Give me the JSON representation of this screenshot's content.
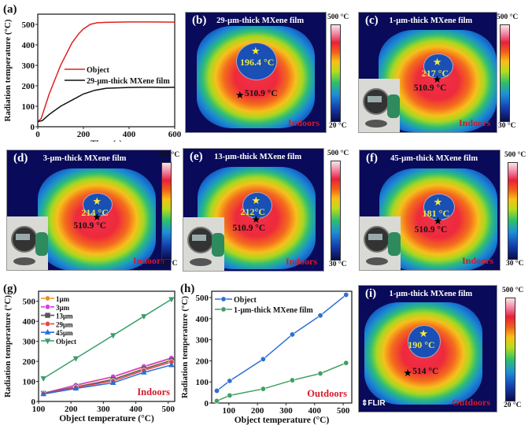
{
  "panels": {
    "a": {
      "label": "(a)"
    },
    "b": {
      "label": "(b)",
      "title": "29-μm-thick MXene film",
      "film_temp": "196.4 °C",
      "object_temp": "510.9 °C",
      "env": "Indoors",
      "cbar_max": "500 °C",
      "cbar_min": "20 °C"
    },
    "c": {
      "label": "(c)",
      "title": "1-μm-thick MXene film",
      "film_temp": "217 °C",
      "object_temp": "510.9 °C",
      "env": "Indoors",
      "cbar_max": "500 °C",
      "cbar_min": "30 °C"
    },
    "d": {
      "label": "(d)",
      "title": "3-μm-thick MXene film",
      "film_temp": "214 °C",
      "object_temp": "510.9 °C",
      "env": "Indoors",
      "cbar_max": "500 °C",
      "cbar_min": "30 °C"
    },
    "e": {
      "label": "(e)",
      "title": "13-μm-thick MXene film",
      "film_temp": "212°C",
      "object_temp": "510.9 °C",
      "env": "Indoors",
      "cbar_max": "500 °C",
      "cbar_min": "30 °C"
    },
    "f": {
      "label": "(f)",
      "title": "45-μm-thick MXene film",
      "film_temp": "181 °C",
      "object_temp": "510.9 °C",
      "env": "Indoors",
      "cbar_max": "500 °C",
      "cbar_min": "30 °C"
    },
    "g": {
      "label": "(g)"
    },
    "h": {
      "label": "(h)"
    },
    "i": {
      "label": "(i)",
      "title": "1-μm-thick MXene film",
      "film_temp": "190 °C",
      "object_temp": "514 °C",
      "env": "Outdoors",
      "cbar_max": "500 °C",
      "cbar_min": "20 °C",
      "camera_brand": "FLIR"
    }
  },
  "chart_data": [
    {
      "id": "a",
      "type": "line",
      "xlabel": "Time (s)",
      "ylabel": "Radiation temperature (°C)",
      "xlim": [
        0,
        600
      ],
      "ylim": [
        0,
        550
      ],
      "xticks": [
        0,
        200,
        400,
        600
      ],
      "yticks": [
        0,
        100,
        200,
        300,
        400,
        500
      ],
      "legend": "center-right",
      "series": [
        {
          "name": "Object",
          "color": "#e02020",
          "x": [
            0,
            15,
            50,
            100,
            150,
            180,
            200,
            230,
            260,
            300,
            400,
            500,
            600
          ],
          "y": [
            25,
            40,
            160,
            300,
            410,
            455,
            478,
            500,
            508,
            510,
            512,
            512,
            511
          ]
        },
        {
          "name": "29-μm-thick MXene film",
          "color": "#111111",
          "x": [
            0,
            20,
            50,
            100,
            150,
            200,
            250,
            300,
            350,
            400,
            450,
            500,
            550,
            600
          ],
          "y": [
            25,
            30,
            60,
            100,
            130,
            160,
            178,
            188,
            190,
            192,
            193,
            193,
            192,
            193
          ]
        }
      ]
    },
    {
      "id": "g",
      "type": "line",
      "xlabel": "Object temperature (°C)",
      "ylabel": "Radiation temperature (°C)",
      "xlim": [
        100,
        520
      ],
      "ylim": [
        0,
        550
      ],
      "xticks": [
        100,
        200,
        300,
        400,
        500
      ],
      "yticks": [
        0,
        100,
        200,
        300,
        400,
        500
      ],
      "legend": "top-left",
      "annotation": "Indoors",
      "x": [
        115,
        215,
        330,
        425,
        510
      ],
      "series": [
        {
          "name": "1μm",
          "color": "#f08c1c",
          "marker": "circle",
          "values": [
            42,
            80,
            122,
            172,
            215
          ]
        },
        {
          "name": "3μm",
          "color": "#d63fe0",
          "marker": "circle",
          "values": [
            40,
            82,
            124,
            175,
            217
          ]
        },
        {
          "name": "13μm",
          "color": "#555555",
          "marker": "square",
          "values": [
            40,
            72,
            110,
            162,
            205
          ]
        },
        {
          "name": "29μm",
          "color": "#e8444a",
          "marker": "circle",
          "values": [
            38,
            70,
            102,
            155,
            197
          ]
        },
        {
          "name": "45μm",
          "color": "#2a6ed6",
          "marker": "triangle-up",
          "values": [
            37,
            65,
            93,
            145,
            182
          ]
        },
        {
          "name": "Object",
          "color": "#3a9e6a",
          "marker": "triangle-down",
          "values": [
            115,
            215,
            330,
            425,
            510
          ]
        }
      ]
    },
    {
      "id": "h",
      "type": "line",
      "xlabel": "Object temperature (°C)",
      "ylabel": "Radiation temperature (°C)",
      "xlim": [
        40,
        530
      ],
      "ylim": [
        0,
        530
      ],
      "xticks": [
        100,
        200,
        300,
        400,
        500
      ],
      "yticks": [
        0,
        100,
        200,
        300,
        400,
        500
      ],
      "legend": "top-left",
      "annotation": "Outdoors",
      "x": [
        58,
        103,
        220,
        322,
        420,
        510
      ],
      "series": [
        {
          "name": "Object",
          "color": "#2f6fd2",
          "marker": "circle",
          "values": [
            58,
            105,
            208,
            325,
            415,
            513
          ]
        },
        {
          "name": "1-μm-thick MXene film",
          "color": "#3fa060",
          "marker": "circle",
          "values": [
            10,
            36,
            67,
            108,
            140,
            190
          ]
        }
      ]
    }
  ]
}
